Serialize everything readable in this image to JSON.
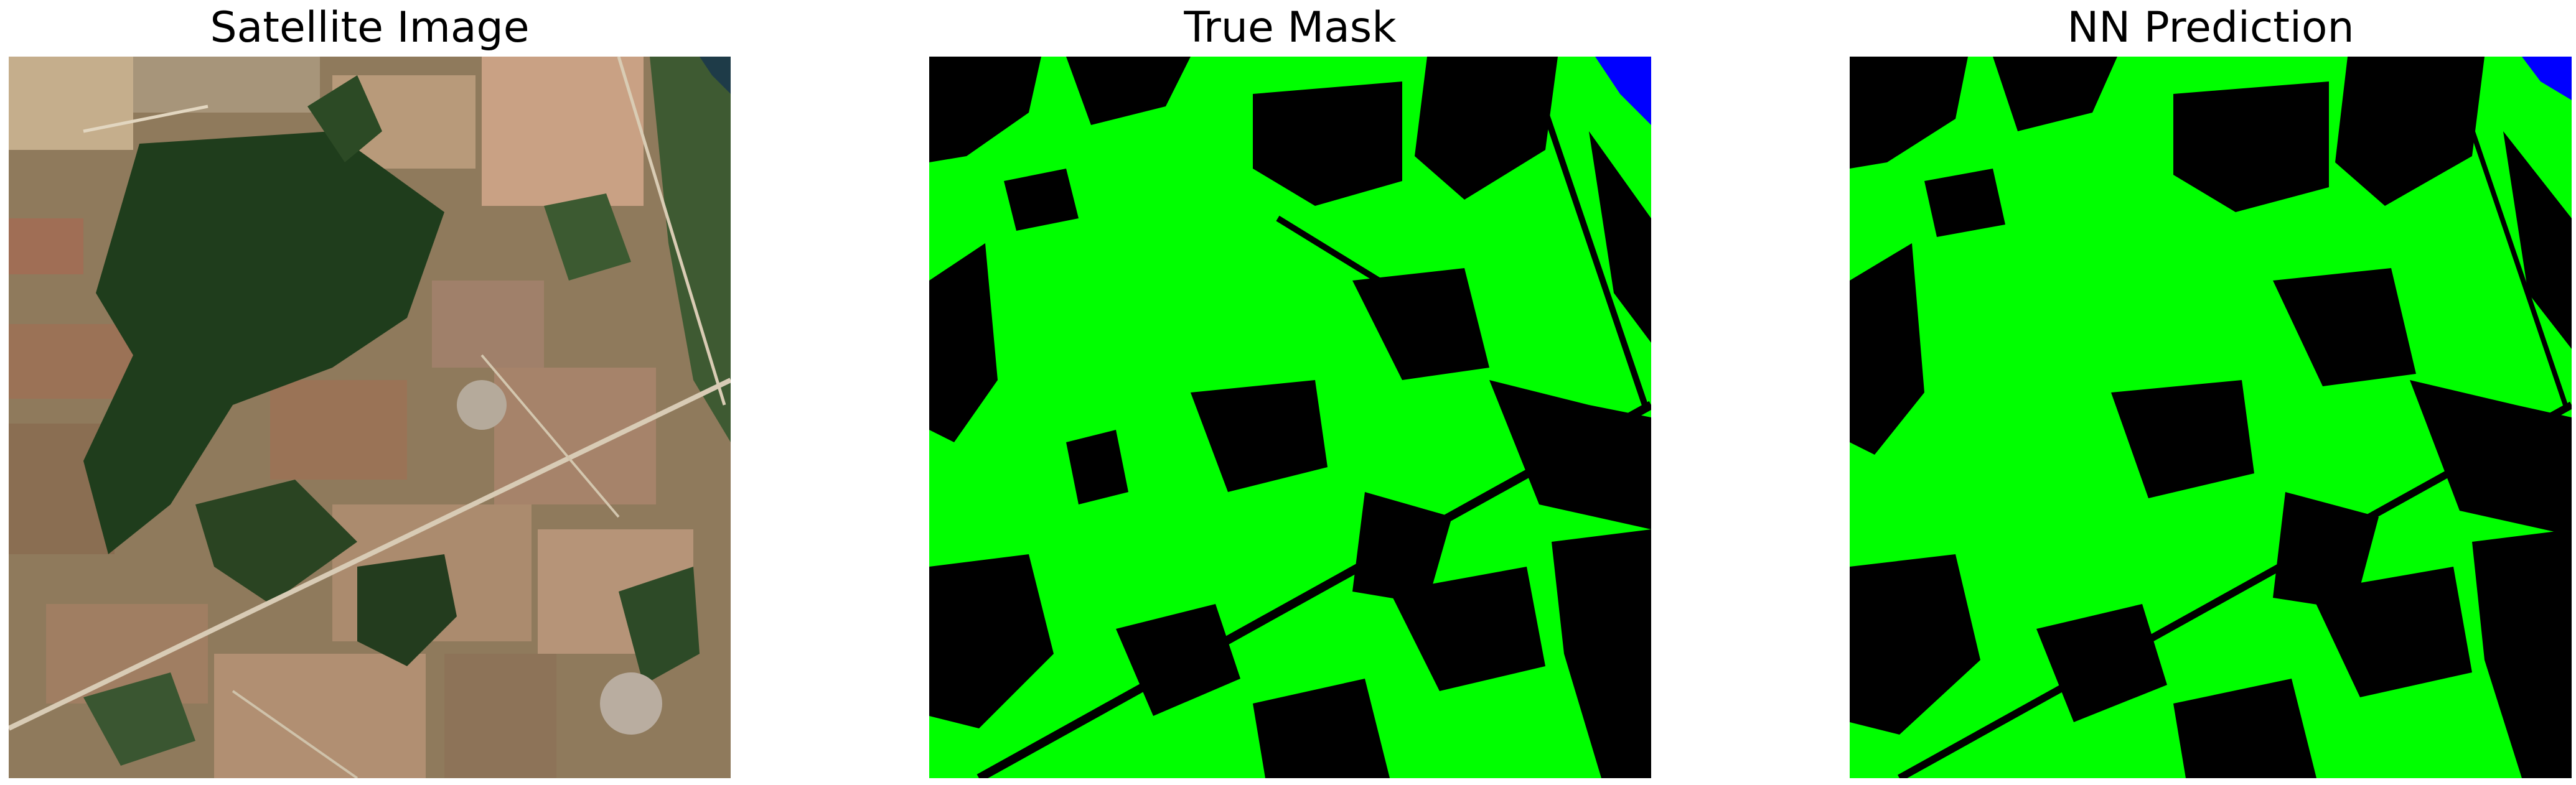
{
  "figure": {
    "panels": [
      {
        "title": "Satellite Image",
        "image": "satellite-rgb"
      },
      {
        "title": "True Mask",
        "image": "segmentation-mask"
      },
      {
        "title": "NN Prediction",
        "image": "segmentation-mask"
      }
    ],
    "mask_colors": {
      "vegetation": "#00ff00",
      "other": "#000000",
      "water": "#0000ff"
    }
  }
}
